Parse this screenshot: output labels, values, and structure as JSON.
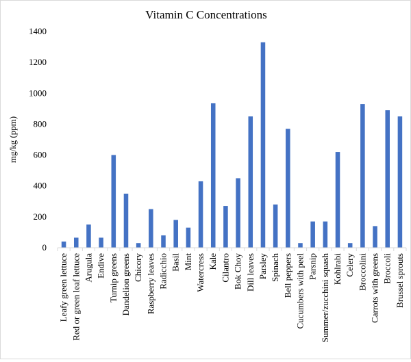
{
  "chart_data": {
    "type": "bar",
    "title": "Vitamin C Concentrations",
    "xlabel": "",
    "ylabel": "mg/kg (ppm)",
    "ylim": [
      0,
      1400
    ],
    "yticks": [
      0,
      200,
      400,
      600,
      800,
      1000,
      1200,
      1400
    ],
    "grid": false,
    "legend": "none",
    "bar_color": "#4472C4",
    "categories": [
      "Leafy green lettuce",
      "Red or green leaf lettuce",
      "Arugula",
      "Endive",
      "Turnip greens",
      "Dandelion greens",
      "Chicory",
      "Raspberry leaves",
      "Radicchio",
      "Basil",
      "Mint",
      "Watercress",
      "Kale",
      "Cilantro",
      "Bok Choy",
      "Dill leaves",
      "Parsley",
      "Spinach",
      "Bell peppers",
      "Cucumbers with peel",
      "Parsnip",
      "Summer/zucchini squash",
      "Kohlrabi",
      "Celery",
      "Broccolini",
      "Carrots with greens",
      "Broccoli",
      "Brussel sprouts"
    ],
    "values": [
      40,
      65,
      150,
      65,
      600,
      350,
      30,
      250,
      80,
      180,
      130,
      430,
      935,
      270,
      450,
      850,
      1330,
      280,
      770,
      30,
      170,
      170,
      620,
      30,
      930,
      140,
      890,
      850
    ]
  }
}
